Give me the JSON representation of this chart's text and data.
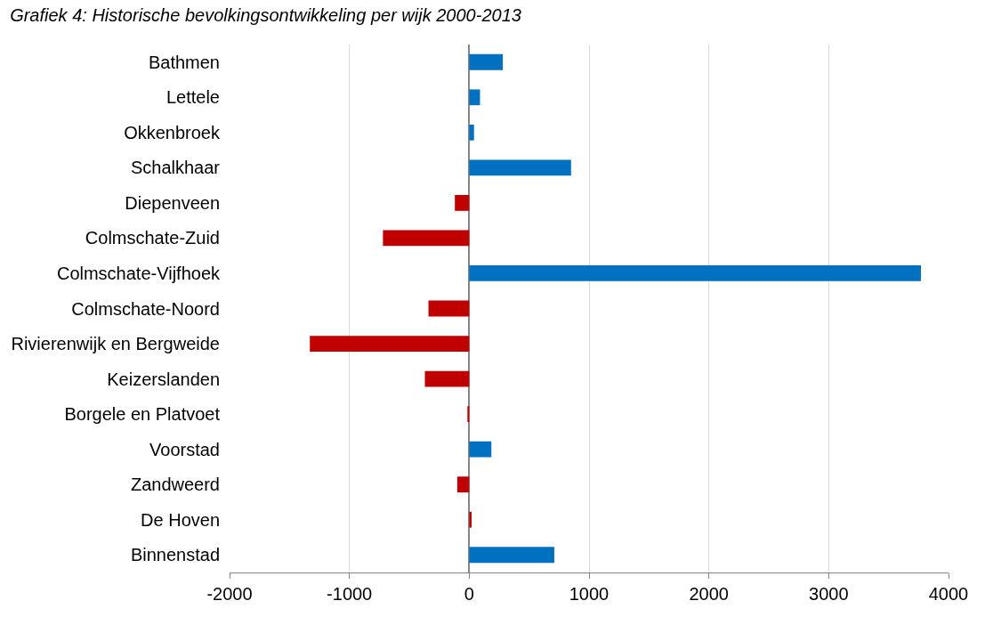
{
  "chart_data": {
    "type": "bar",
    "orientation": "horizontal",
    "title": "Grafiek 4: Historische bevolkingsontwikkeling per wijk 2000-2013",
    "categories": [
      "Bathmen",
      "Lettele",
      "Okkenbroek",
      "Schalkhaar",
      "Diepenveen",
      "Colmschate-Zuid",
      "Colmschate-Vijfhoek",
      "Colmschate-Noord",
      "Rivierenwijk en Bergweide",
      "Keizerslanden",
      "Borgele en Platvoet",
      "Voorstad",
      "Zandweerd",
      "De Hoven",
      "Binnenstad"
    ],
    "values": [
      280,
      90,
      40,
      850,
      -120,
      -720,
      3770,
      -340,
      -1330,
      -370,
      -15,
      185,
      -100,
      20,
      710
    ],
    "colors": [
      "#0070c0",
      "#0070c0",
      "#0070c0",
      "#0070c0",
      "#c00000",
      "#c00000",
      "#0070c0",
      "#c00000",
      "#c00000",
      "#c00000",
      "#c00000",
      "#0070c0",
      "#c00000",
      "#c00000",
      "#0070c0"
    ],
    "xlim": [
      -2000,
      4000
    ],
    "xticks": [
      -2000,
      -1000,
      0,
      1000,
      2000,
      3000,
      4000
    ],
    "grid": "x",
    "legend": false
  }
}
